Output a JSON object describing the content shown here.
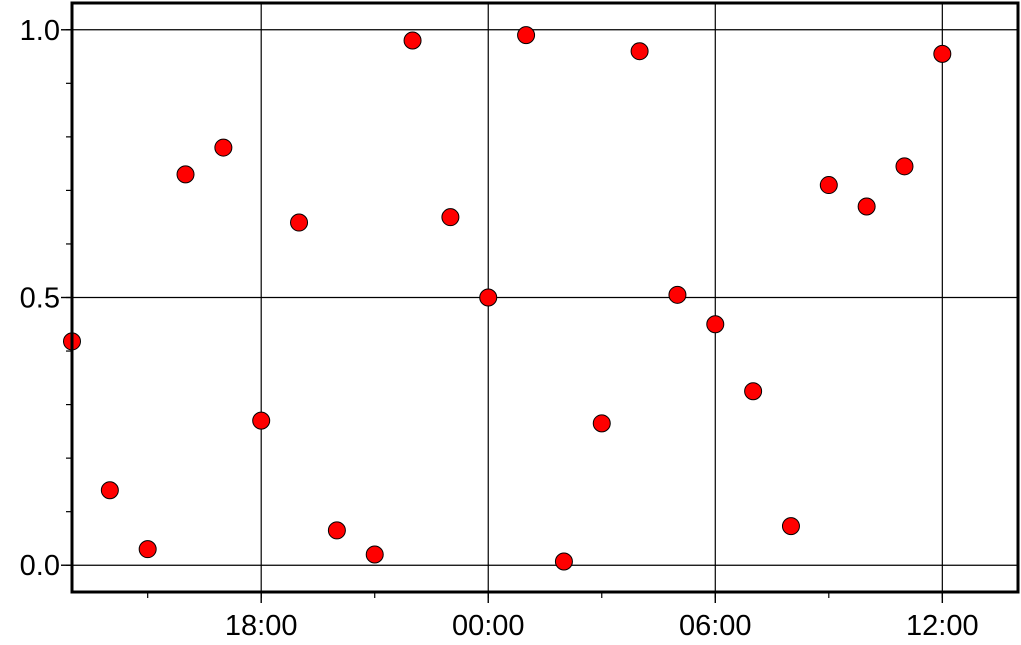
{
  "chart_data": {
    "type": "scatter",
    "title": "",
    "xlabel": "",
    "ylabel": "",
    "x_axis": {
      "kind": "time",
      "range": [
        "13:00",
        "14:00 (+1 day)"
      ],
      "major_ticks": [
        {
          "time": "18:00",
          "label": "18:00"
        },
        {
          "time": "00:00",
          "label": "00:00"
        },
        {
          "time": "06:00",
          "label": "06:00"
        },
        {
          "time": "12:00",
          "label": "12:00"
        }
      ],
      "minor_tick_interval_hours": 3
    },
    "y_axis": {
      "range": [
        -0.05,
        1.05
      ],
      "major_ticks": [
        {
          "value": 0.0,
          "label": "0.0"
        },
        {
          "value": 0.5,
          "label": "0.5"
        },
        {
          "value": 1.0,
          "label": "1.0"
        }
      ],
      "minor_tick_interval": 0.1
    },
    "grid": true,
    "marker_color": "#ff0000",
    "marker_edge_color": "#000000",
    "points": [
      {
        "time": "14:00",
        "y": 0.14
      },
      {
        "time": "15:00",
        "y": 0.03
      },
      {
        "time": "16:00",
        "y": 0.73
      },
      {
        "time": "17:00",
        "y": 0.78
      },
      {
        "time": "18:00",
        "y": 0.27
      },
      {
        "time": "19:00",
        "y": 0.64
      },
      {
        "time": "20:00",
        "y": 0.065
      },
      {
        "time": "21:00",
        "y": 0.02
      },
      {
        "time": "22:00",
        "y": 0.98
      },
      {
        "time": "23:00",
        "y": 0.65
      },
      {
        "time": "00:00",
        "y": 0.5
      },
      {
        "time": "01:00",
        "y": 0.99
      },
      {
        "time": "02:00",
        "y": 0.007
      },
      {
        "time": "03:00",
        "y": 0.265
      },
      {
        "time": "04:00",
        "y": 0.96
      },
      {
        "time": "05:00",
        "y": 0.505
      },
      {
        "time": "06:00",
        "y": 0.45
      },
      {
        "time": "07:00",
        "y": 0.325
      },
      {
        "time": "08:00",
        "y": 0.073
      },
      {
        "time": "09:00",
        "y": 0.71
      },
      {
        "time": "10:00",
        "y": 0.67
      },
      {
        "time": "11:00",
        "y": 0.745
      },
      {
        "time": "12:00",
        "y": 0.955
      },
      {
        "time": "13:00",
        "y": 0.418
      }
    ]
  }
}
